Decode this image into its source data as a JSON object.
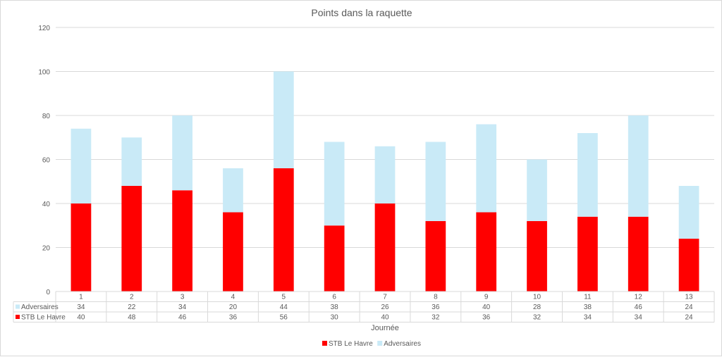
{
  "chart_data": {
    "type": "bar",
    "stacked": true,
    "title": "Points dans la raquette",
    "xlabel": "Journée",
    "ylabel": "",
    "ylim": [
      0,
      120
    ],
    "yticks": [
      0,
      20,
      40,
      60,
      80,
      100,
      120
    ],
    "grid": true,
    "legend_position": "bottom",
    "categories": [
      "1",
      "2",
      "3",
      "4",
      "5",
      "6",
      "7",
      "8",
      "9",
      "10",
      "11",
      "12",
      "13"
    ],
    "series": [
      {
        "name": "STB Le Havre",
        "color": "#ff0000",
        "values": [
          40,
          48,
          46,
          36,
          56,
          30,
          40,
          32,
          36,
          32,
          34,
          34,
          24
        ]
      },
      {
        "name": "Adversaires",
        "color": "#c9eaf7",
        "values": [
          34,
          22,
          34,
          20,
          44,
          38,
          26,
          36,
          40,
          28,
          38,
          46,
          24
        ]
      }
    ],
    "data_table": {
      "row_order": [
        "Adversaires",
        "STB Le Havre"
      ]
    },
    "legend_order": [
      "STB Le Havre",
      "Adversaires"
    ]
  }
}
